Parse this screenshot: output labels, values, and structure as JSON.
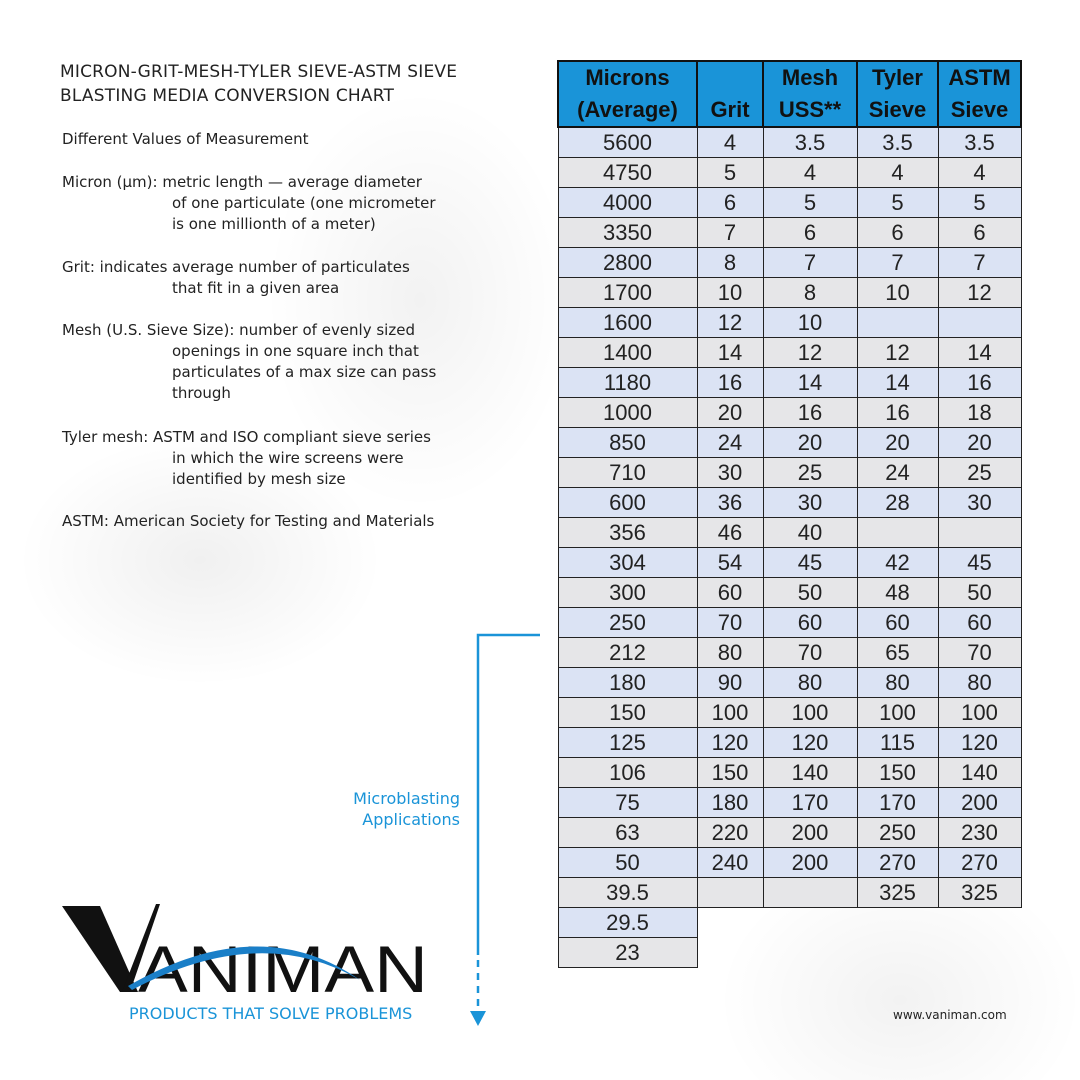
{
  "title_lines": [
    "MICRON-GRIT-MESH-TYLER SIEVE-ASTM SIEVE",
    "BLASTING MEDIA CONVERSION CHART"
  ],
  "subtitle": "Different Values of Measurement",
  "definitions": [
    {
      "first": "Micron (µm): metric length — average diameter",
      "rest": [
        "of one particulate (one micrometer",
        "is one millionth of a meter)"
      ]
    },
    {
      "first": "Grit: indicates average number of particulates",
      "rest": [
        "that fit  in a given area"
      ]
    },
    {
      "first": "Mesh (U.S. Sieve Size): number of evenly sized",
      "rest": [
        "openings in one square inch that",
        "particulates of a max size can pass",
        "through"
      ]
    },
    {
      "first": "Tyler mesh: ASTM and ISO compliant sieve series",
      "rest": [
        "in which the wire screens were",
        "identified by mesh size"
      ]
    },
    {
      "first": "ASTM: American Society for Testing and Materials",
      "rest": []
    }
  ],
  "table": {
    "headers": [
      [
        "Microns",
        "(Average)"
      ],
      [
        "",
        "Grit"
      ],
      [
        "Mesh",
        "USS**"
      ],
      [
        "Tyler",
        "Sieve"
      ],
      [
        "ASTM",
        "Sieve"
      ]
    ],
    "rows": [
      [
        "5600",
        "4",
        "3.5",
        "3.5",
        "3.5"
      ],
      [
        "4750",
        "5",
        "4",
        "4",
        "4"
      ],
      [
        "4000",
        "6",
        "5",
        "5",
        "5"
      ],
      [
        "3350",
        "7",
        "6",
        "6",
        "6"
      ],
      [
        "2800",
        "8",
        "7",
        "7",
        "7"
      ],
      [
        "1700",
        "10",
        "8",
        "10",
        "12"
      ],
      [
        "1600",
        "12",
        "10",
        "",
        ""
      ],
      [
        "1400",
        "14",
        "12",
        "12",
        "14"
      ],
      [
        "1180",
        "16",
        "14",
        "14",
        "16"
      ],
      [
        "1000",
        "20",
        "16",
        "16",
        "18"
      ],
      [
        "850",
        "24",
        "20",
        "20",
        "20"
      ],
      [
        "710",
        "30",
        "25",
        "24",
        "25"
      ],
      [
        "600",
        "36",
        "30",
        "28",
        "30"
      ],
      [
        "356",
        "46",
        "40",
        "",
        ""
      ],
      [
        "304",
        "54",
        "45",
        "42",
        "45"
      ],
      [
        "300",
        "60",
        "50",
        "48",
        "50"
      ],
      [
        "250",
        "70",
        "60",
        "60",
        "60"
      ],
      [
        "212",
        "80",
        "70",
        "65",
        "70"
      ],
      [
        "180",
        "90",
        "80",
        "80",
        "80"
      ],
      [
        "150",
        "100",
        "100",
        "100",
        "100"
      ],
      [
        "125",
        "120",
        "120",
        "115",
        "120"
      ],
      [
        "106",
        "150",
        "140",
        "150",
        "140"
      ],
      [
        "75",
        "180",
        "170",
        "170",
        "200"
      ],
      [
        "63",
        "220",
        "200",
        "250",
        "230"
      ],
      [
        "50",
        "240",
        "200",
        "270",
        "270"
      ],
      [
        "39.5",
        "",
        "",
        "325",
        "325"
      ],
      [
        "29.5"
      ],
      [
        "23"
      ]
    ],
    "header_color": "#1a94d8",
    "row_colors": [
      "#dbe3f4",
      "#e6e6e8"
    ]
  },
  "microblasting_label": [
    "Microblasting",
    "Applications"
  ],
  "logo": {
    "text": "VANIMAN",
    "tagline": "PRODUCTS THAT SOLVE PROBLEMS"
  },
  "website": "www.vaniman.com",
  "accent_color": "#1a94d8"
}
